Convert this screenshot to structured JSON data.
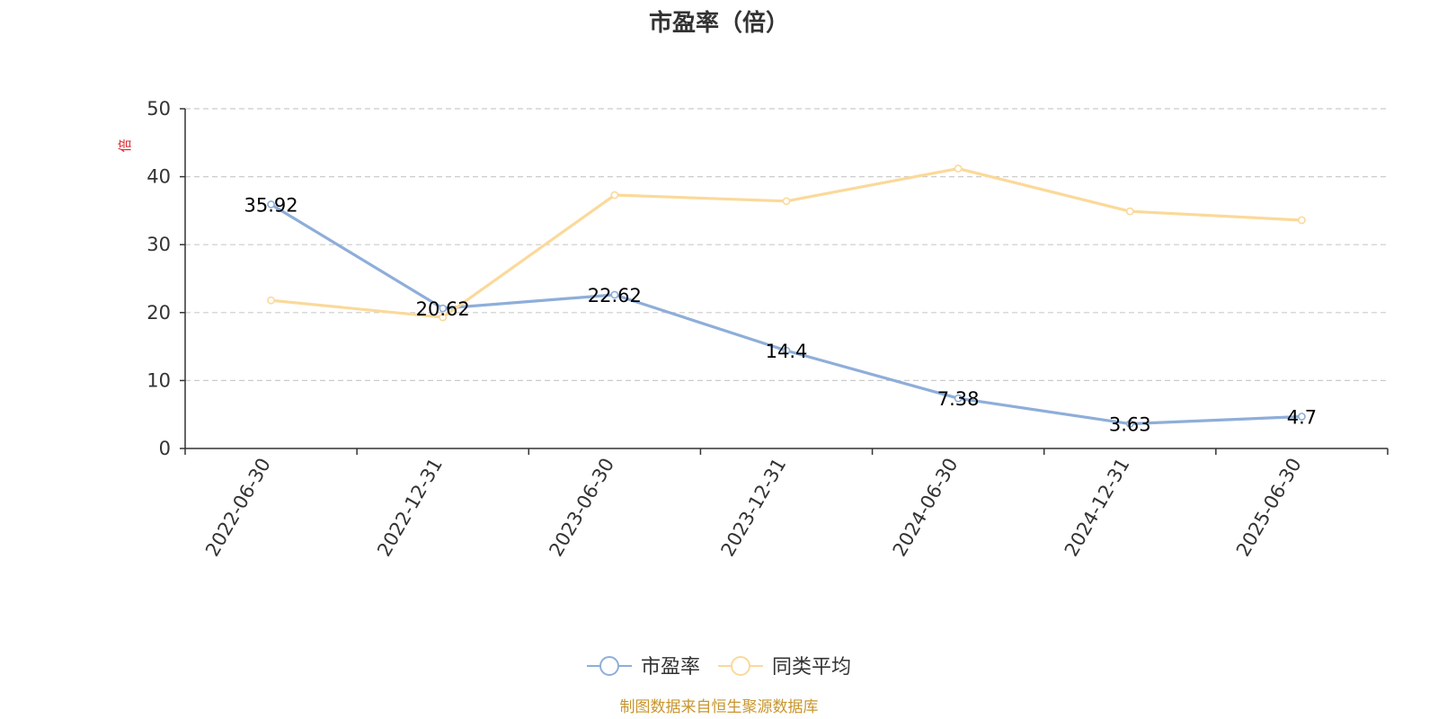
{
  "chart_data": {
    "type": "line",
    "title": "市盈率（倍）",
    "ylabel": "倍",
    "ylim": [
      0,
      50
    ],
    "yticks": [
      0,
      10,
      20,
      30,
      40,
      50
    ],
    "categories": [
      "2022-06-30",
      "2022-12-31",
      "2023-06-30",
      "2023-12-31",
      "2024-06-30",
      "2024-12-31",
      "2025-06-30"
    ],
    "series": [
      {
        "name": "市盈率",
        "color": "#8eaed9",
        "values": [
          35.92,
          20.62,
          22.62,
          14.4,
          7.38,
          3.63,
          4.7
        ],
        "labels": [
          "35.92",
          "20.62",
          "22.62",
          "14.4",
          "7.38",
          "3.63",
          "4.7"
        ],
        "show_labels": true
      },
      {
        "name": "同类平均",
        "color": "#fbd99a",
        "values": [
          21.8,
          19.3,
          37.3,
          36.4,
          41.2,
          34.9,
          33.6
        ],
        "show_labels": false
      }
    ],
    "grid": true,
    "legend_position": "bottom-center"
  },
  "footer": {
    "source": "制图数据来自恒生聚源数据库"
  }
}
